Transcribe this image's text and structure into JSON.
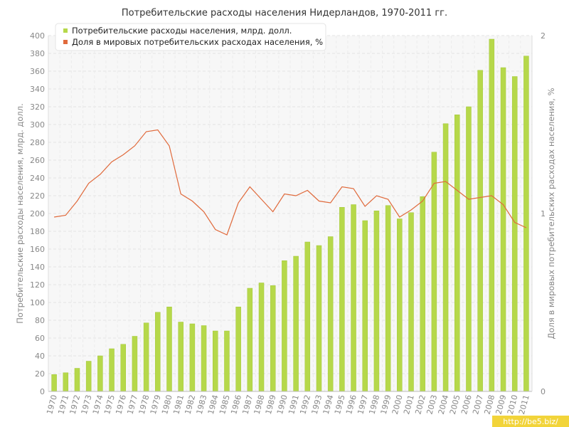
{
  "chart_data": {
    "type": "bar",
    "title": "Потребительские расходы населения Нидерландов, 1970-2011 гг.",
    "ylabel": "Потребительские расходы населения, млрд. долл.",
    "ylabel_right": "Доля в мировых потребительских расходах населения, %",
    "ylim": [
      0,
      400
    ],
    "ylim_right": [
      0,
      2
    ],
    "y_ticks": [
      "0",
      "20",
      "40",
      "60",
      "80",
      "100",
      "120",
      "140",
      "160",
      "180",
      "200",
      "220",
      "240",
      "260",
      "280",
      "300",
      "320",
      "340",
      "360",
      "380",
      "400"
    ],
    "y_ticks_right": [
      "0",
      "1",
      "2"
    ],
    "grid": true,
    "legend_position": "top-left",
    "categories": [
      "1970",
      "1971",
      "1972",
      "1973",
      "1974",
      "1975",
      "1976",
      "1977",
      "1978",
      "1979",
      "1980",
      "1981",
      "1982",
      "1983",
      "1984",
      "1985",
      "1986",
      "1987",
      "1988",
      "1989",
      "1990",
      "1991",
      "1992",
      "1993",
      "1994",
      "1995",
      "1996",
      "1997",
      "1998",
      "1999",
      "2000",
      "2001",
      "2002",
      "2003",
      "2004",
      "2005",
      "2006",
      "2007",
      "2008",
      "2009",
      "2010",
      "2011"
    ],
    "series": [
      {
        "name": "Потребительские расходы населения, млрд. долл.",
        "type": "bar",
        "axis": "left",
        "color": "#b6d84a",
        "values": [
          19,
          21,
          26,
          34,
          40,
          48,
          53,
          62,
          77,
          89,
          95,
          78,
          76,
          74,
          68,
          68,
          95,
          116,
          122,
          119,
          147,
          152,
          168,
          164,
          174,
          207,
          210,
          192,
          203,
          209,
          194,
          201,
          219,
          269,
          301,
          311,
          320,
          361,
          396,
          364,
          354,
          377
        ]
      },
      {
        "name": "Доля в мировых потребительских расходах населения, %",
        "type": "line",
        "axis": "right",
        "color": "#e06a3c",
        "values": [
          0.98,
          0.99,
          1.07,
          1.17,
          1.22,
          1.29,
          1.33,
          1.38,
          1.46,
          1.47,
          1.38,
          1.11,
          1.07,
          1.01,
          0.91,
          0.88,
          1.06,
          1.15,
          1.08,
          1.01,
          1.11,
          1.1,
          1.13,
          1.07,
          1.06,
          1.15,
          1.14,
          1.04,
          1.1,
          1.08,
          0.98,
          1.02,
          1.07,
          1.17,
          1.18,
          1.13,
          1.08,
          1.09,
          1.1,
          1.05,
          0.95,
          0.92
        ]
      }
    ]
  },
  "watermark": "http://be5.biz/"
}
